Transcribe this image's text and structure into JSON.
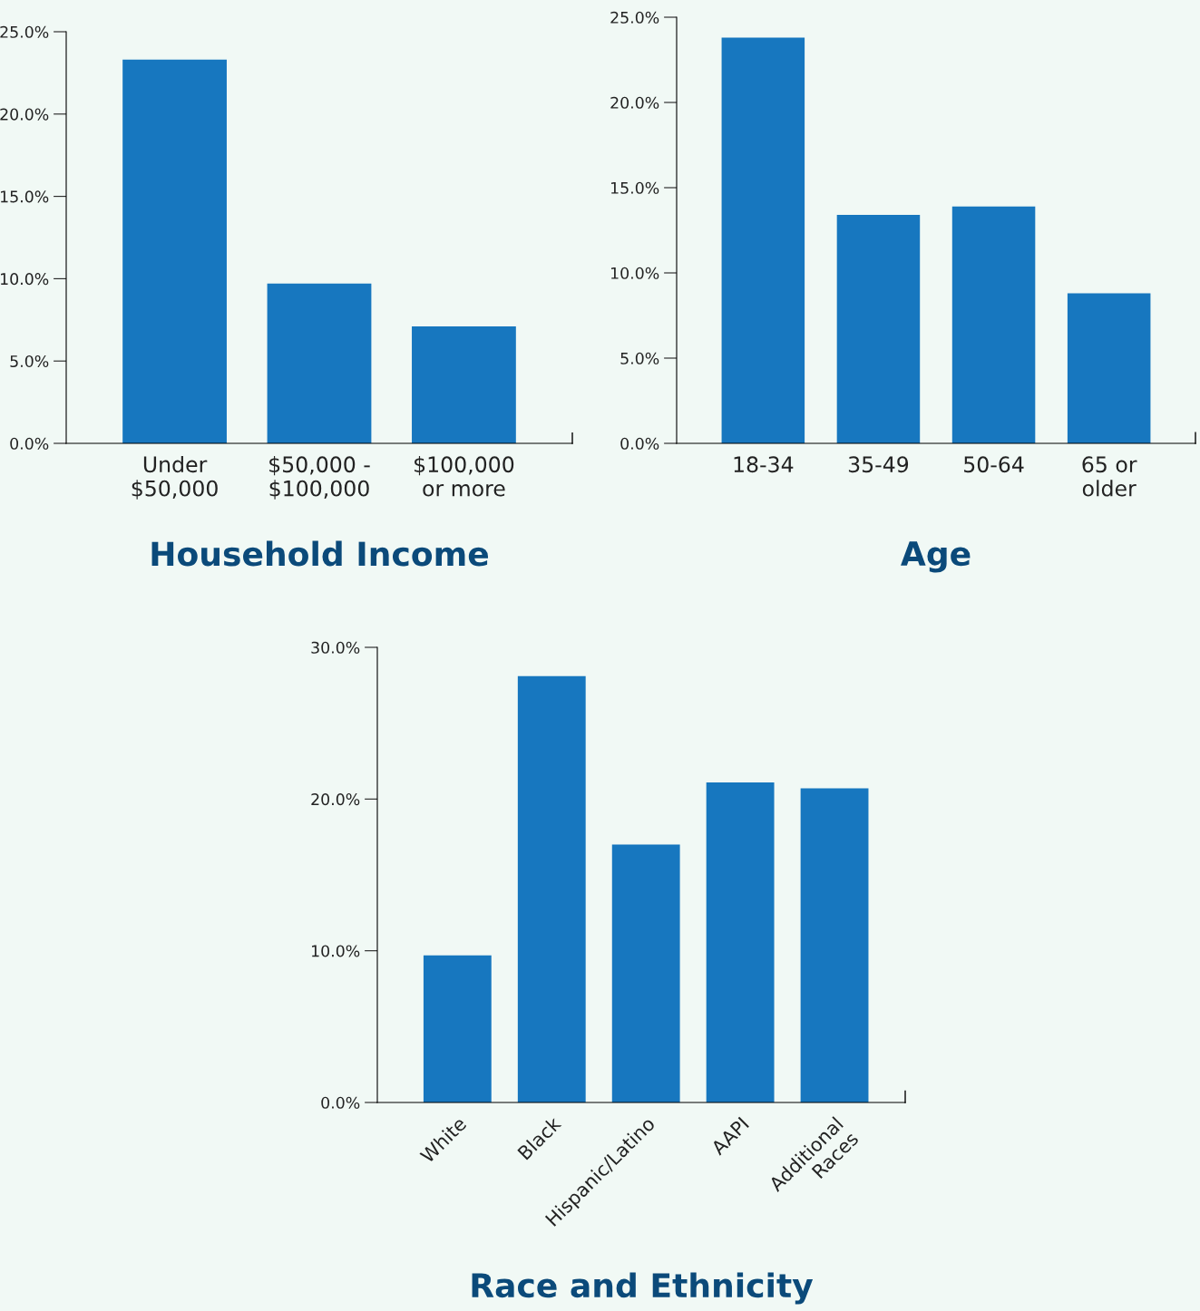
{
  "chart_data": [
    {
      "type": "bar",
      "title": "Household Income",
      "categories": [
        "Under\n$50,000",
        "$50,000 -\n$100,000",
        "$100,000\nor more"
      ],
      "values": [
        23.3,
        9.7,
        7.1
      ],
      "color": "#1777bf",
      "ylim": [
        0,
        25
      ],
      "yticks": [
        {
          "value": 0,
          "label": "0.0%"
        },
        {
          "value": 5,
          "label": "5.0%"
        },
        {
          "value": 10,
          "label": "10.0%"
        },
        {
          "value": 15,
          "label": "15.0%"
        },
        {
          "value": 20,
          "label": "20.0%"
        },
        {
          "value": 25,
          "label": "25.0%"
        }
      ],
      "grid": false,
      "legend": false
    },
    {
      "type": "bar",
      "title": "Age",
      "categories": [
        "18-34",
        "35-49",
        "50-64",
        "65 or\nolder"
      ],
      "values": [
        23.8,
        13.4,
        13.9,
        8.8
      ],
      "color": "#1777bf",
      "ylim": [
        0,
        25
      ],
      "yticks": [
        {
          "value": 0,
          "label": "0.0%"
        },
        {
          "value": 5,
          "label": "5.0%"
        },
        {
          "value": 10,
          "label": "10.0%"
        },
        {
          "value": 15,
          "label": "15.0%"
        },
        {
          "value": 20,
          "label": "20.0%"
        },
        {
          "value": 25,
          "label": "25.0%"
        }
      ],
      "grid": false,
      "legend": false
    },
    {
      "type": "bar",
      "title": "Race and Ethnicity",
      "categories": [
        "White",
        "Black",
        "Hispanic/Latino",
        "AAPI",
        "Additional\nRaces"
      ],
      "values": [
        9.7,
        28.1,
        17.0,
        21.1,
        20.7
      ],
      "color": "#1777bf",
      "ylim": [
        0,
        30
      ],
      "yticks": [
        {
          "value": 0,
          "label": "0.0%"
        },
        {
          "value": 10,
          "label": "10.0%"
        },
        {
          "value": 20,
          "label": "20.0%"
        },
        {
          "value": 30,
          "label": "30.0%"
        }
      ],
      "grid": false,
      "legend": false
    }
  ]
}
